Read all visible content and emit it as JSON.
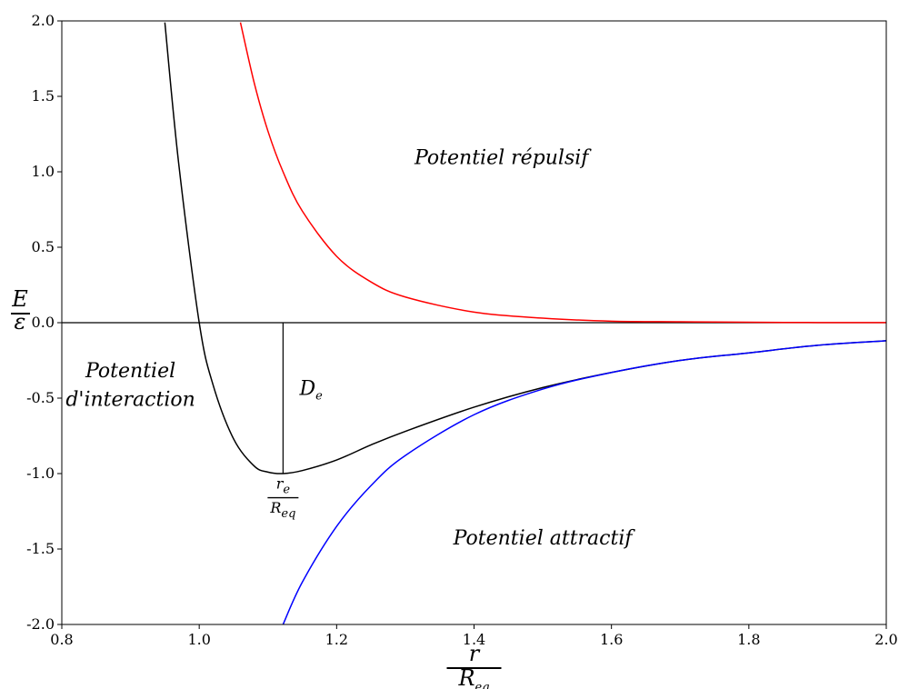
{
  "chart_data": {
    "type": "line",
    "title": "",
    "xlabel": {
      "num": "r",
      "den": "R",
      "den_sub": "eq"
    },
    "ylabel": {
      "num": "E",
      "den": "ε"
    },
    "xlim": [
      0.8,
      2.0
    ],
    "ylim": [
      -2.0,
      2.0
    ],
    "x_ticks": [
      0.8,
      1.0,
      1.2,
      1.4,
      1.6,
      1.8,
      2.0
    ],
    "x_tick_labels": [
      "0.8",
      "1.0",
      "1.2",
      "1.4",
      "1.6",
      "1.8",
      "2.0"
    ],
    "y_ticks": [
      -2.0,
      -1.5,
      -1.0,
      -0.5,
      0.0,
      0.5,
      1.0,
      1.5,
      2.0
    ],
    "y_tick_labels": [
      "-2.0",
      "-1.5",
      "-1.0",
      "-0.5",
      "0.0",
      "0.5",
      "1.0",
      "1.5",
      "2.0"
    ],
    "grid": false,
    "legend": "none",
    "series": [
      {
        "color": "#000000",
        "x": [
          0.95,
          0.97,
          1.0,
          1.02,
          1.05,
          1.08,
          1.1,
          1.122,
          1.15,
          1.2,
          1.25,
          1.3,
          1.4,
          1.5,
          1.6,
          1.7,
          1.8,
          1.9,
          2.0
        ],
        "y": [
          1.99,
          1.06,
          0.0,
          -0.41,
          -0.77,
          -0.95,
          -0.99,
          -1.0,
          -0.98,
          -0.91,
          -0.81,
          -0.72,
          -0.56,
          -0.43,
          -0.33,
          -0.25,
          -0.2,
          -0.15,
          -0.12
        ]
      },
      {
        "color": "#ff0000",
        "x": [
          1.06,
          1.08,
          1.1,
          1.122,
          1.15,
          1.2,
          1.25,
          1.3,
          1.4,
          1.5,
          1.6,
          1.7,
          1.8,
          1.9,
          2.0
        ],
        "y": [
          1.99,
          1.59,
          1.27,
          1.0,
          0.74,
          0.44,
          0.27,
          0.17,
          0.07,
          0.03,
          0.01,
          0.006,
          0.003,
          0.001,
          0.001
        ]
      },
      {
        "color": "#0000ff",
        "x": [
          1.122,
          1.15,
          1.2,
          1.25,
          1.3,
          1.4,
          1.5,
          1.6,
          1.7,
          1.8,
          1.9,
          2.0
        ],
        "y": [
          -2.0,
          -1.72,
          -1.35,
          -1.08,
          -0.88,
          -0.61,
          -0.44,
          -0.33,
          -0.25,
          -0.2,
          -0.15,
          -0.12
        ]
      }
    ],
    "reference_lines": [
      {
        "orientation": "horizontal",
        "y": 0.0,
        "color": "#000000"
      },
      {
        "orientation": "vertical",
        "x": 1.122,
        "y_from": -1.0,
        "y_to": 0.0,
        "color": "#000000"
      }
    ],
    "annotations": [
      {
        "key": "repulsive",
        "text": "Potentiel répulsif",
        "x": 1.44,
        "y": 1.05
      },
      {
        "key": "attractive",
        "text": "Potentiel attractif",
        "x": 1.5,
        "y": -1.47
      },
      {
        "key": "interaction_1",
        "text": "Potentiel",
        "x": 0.9,
        "y": -0.36
      },
      {
        "key": "interaction_2",
        "text": "d'interaction",
        "x": 0.9,
        "y": -0.55
      },
      {
        "key": "de",
        "text": "D",
        "sub": "e",
        "x": 1.146,
        "y": -0.48
      },
      {
        "key": "re_num",
        "text": "r",
        "sub": "e",
        "x": 1.122,
        "y": -1.1
      },
      {
        "key": "re_den",
        "text": "R",
        "sub": "eq",
        "x": 1.122,
        "y": -1.26
      }
    ]
  }
}
